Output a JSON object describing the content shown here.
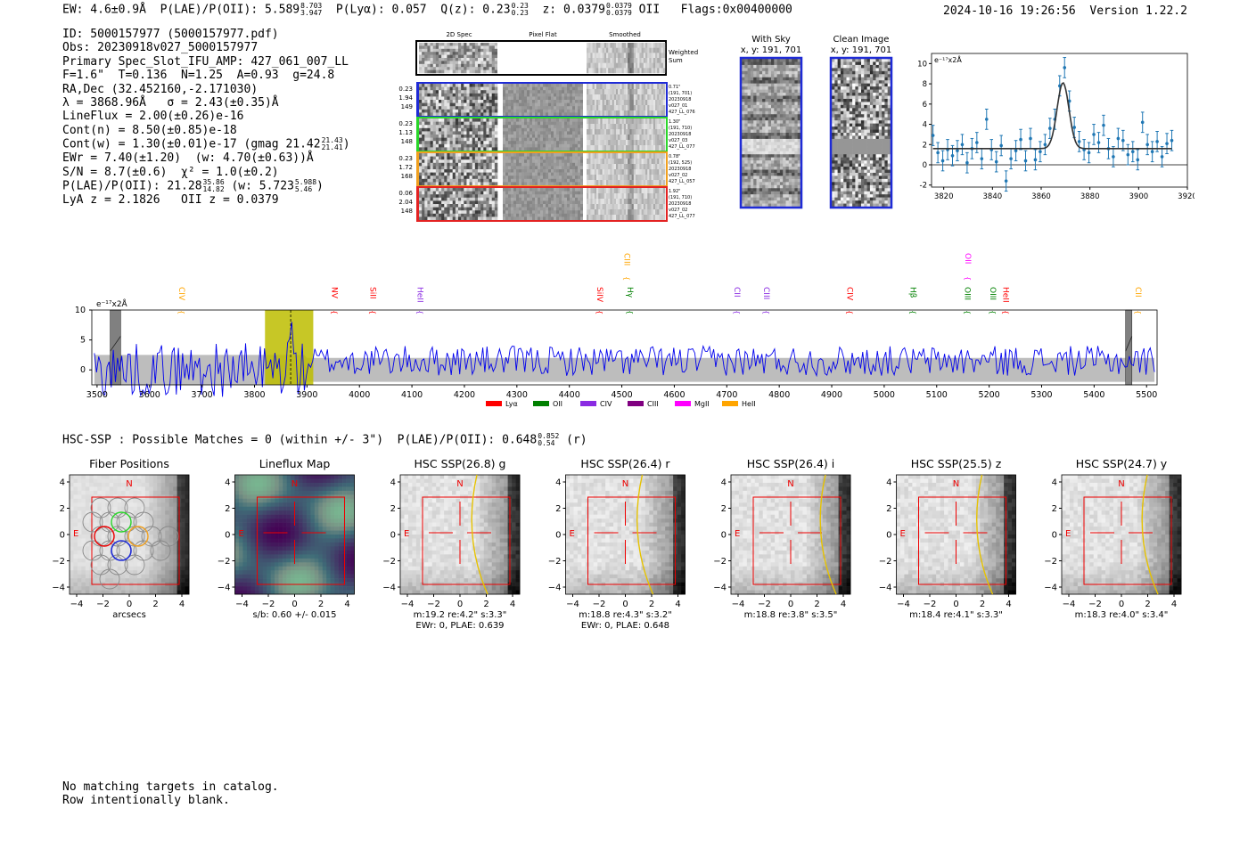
{
  "header": {
    "ew_label": "EW: 4.6±0.9Å",
    "plae_label": "P(LAE)/P(OII): 5.589",
    "plae_hi": "8.703",
    "plae_lo": "3.947",
    "plya_label": "P(Lyα): 0.057",
    "qz_label": "Q(z): 0.23",
    "qz_hi": "0.23",
    "qz_lo": "0.23",
    "z_label": "z: 0.0379",
    "z_hi": "0.0379",
    "z_lo": "0.0379",
    "z_line": "OII",
    "flags": "Flags:0x00400000",
    "datetime": "2024-10-16 19:26:56",
    "version": "Version 1.22.2"
  },
  "info": {
    "id": "ID: 5000157977 (5000157977.pdf)",
    "obs": "Obs: 20230918v027_5000157977",
    "primary": "Primary Spec_Slot_IFU_AMP: 427_061_007_LL",
    "params": "F=1.6\"  T=0.136  N=1.25  A=0.93  g=24.8",
    "radec": "RA,Dec (32.452160,-2.171030)",
    "lambda": "λ = 3868.96Å   σ = 2.43(±0.35)Å",
    "lineflux": "LineFlux = 2.00(±0.26)e-16",
    "contn": "Cont(n) = 8.50(±0.85)e-18",
    "contw": "Cont(w) = 1.30(±0.01)e-17 (gmag 21.42",
    "contw_hi": "21.43",
    "contw_lo": "21.41",
    "contw_end": ")",
    "ewr": "EWr = 7.40(±1.20)  (w: 4.70(±0.63))Å",
    "sn": "S/N = 8.7(±0.6)  χ² = 1.0(±0.2)",
    "plae": "P(LAE)/P(OII): 21.28",
    "plae_hi": "35.86",
    "plae_lo": "14.82",
    "plae_w": "(w: 5.723",
    "plae_w_hi": "5.988",
    "plae_w_lo": "5.46",
    "plae_w_end": ")",
    "lyaz": "LyA z = 2.1826   OII z = 0.0379"
  },
  "cutouts": {
    "col_2d": "2D Spec",
    "col_flat": "Pixel Flat",
    "col_smooth": "Smoothed",
    "weighted_label": "Weighted Sum",
    "rows": [
      {
        "left": [
          "0.23",
          "1.94",
          "149"
        ],
        "right": [
          "0.71\"",
          "(191, 701)",
          "20230918",
          "v027_01",
          "427_LL_076"
        ],
        "color": "#1f2bd6"
      },
      {
        "left": [
          "0.23",
          "1.13",
          "148"
        ],
        "right": [
          "1.30\"",
          "(191, 710)",
          "20230918",
          "v027_03",
          "427_LL_077"
        ],
        "color": "#2ad62a"
      },
      {
        "left": [
          "0.23",
          "1.72",
          "168"
        ],
        "right": [
          "0.78\"",
          "(192, 525)",
          "20230918",
          "v027_02",
          "427_LL_057"
        ],
        "color": "#f0a020"
      },
      {
        "left": [
          "0.06",
          "2.04",
          "148"
        ],
        "right": [
          "1.92\"",
          "(191, 710)",
          "20230918",
          "v027_02",
          "427_LL_077"
        ],
        "color": "#e32222"
      }
    ]
  },
  "sky_panel": {
    "title": "With Sky",
    "coords": "x, y: 191, 701"
  },
  "clean_panel": {
    "title": "Clean Image",
    "coords": "x, y: 191, 701"
  },
  "fit_panel": {
    "unit_label": "e⁻¹⁷x2Å"
  },
  "spectrum": {
    "unit_label": "e⁻¹⁷x2Å",
    "legend": [
      {
        "name": "Lyα",
        "color": "#ff0000"
      },
      {
        "name": "OII",
        "color": "#008000"
      },
      {
        "name": "CIV",
        "color": "#8a2be2"
      },
      {
        "name": "CIII",
        "color": "#800080"
      },
      {
        "name": "MgII",
        "color": "#ff00ff"
      },
      {
        "name": "HeII",
        "color": "#ffa500"
      }
    ]
  },
  "hsc": {
    "summary": "HSC-SSP : Possible Matches = 0 (within +/- 3\")  P(LAE)/P(OII): 0.648",
    "summary_hi": "0.852",
    "summary_lo": "0.54",
    "summary_end": "(r)"
  },
  "footer": {
    "line1": "No matching targets in catalog.",
    "line2": "Row intentionally blank."
  },
  "chart_data": [
    {
      "type": "scatter",
      "title": "Line fit",
      "ylabel": "e⁻¹⁷x2Å",
      "xlim": [
        3815,
        3920
      ],
      "ylim": [
        -2.2,
        11
      ],
      "xticks": [
        3820,
        3840,
        3860,
        3880,
        3900,
        3920
      ],
      "yticks": [
        -2,
        0,
        2,
        4,
        6,
        8,
        10
      ],
      "x": [
        3815.6,
        3817.6,
        3819.6,
        3821.6,
        3823.6,
        3825.6,
        3827.6,
        3829.6,
        3831.6,
        3833.6,
        3835.6,
        3837.6,
        3839.6,
        3841.6,
        3843.6,
        3845.6,
        3847.6,
        3849.6,
        3851.6,
        3853.6,
        3855.6,
        3857.6,
        3859.6,
        3861.6,
        3863.6,
        3865.6,
        3867.6,
        3869.6,
        3871.6,
        3873.6,
        3875.6,
        3877.6,
        3879.6,
        3881.6,
        3883.6,
        3885.6,
        3887.6,
        3889.6,
        3891.6,
        3893.6,
        3895.6,
        3897.6,
        3899.6,
        3901.6,
        3903.6,
        3905.6,
        3907.6,
        3909.6,
        3911.6,
        3913.6
      ],
      "y": [
        2.9,
        1.2,
        0.4,
        1.5,
        0.9,
        1.4,
        2.0,
        0.2,
        1.6,
        2.2,
        0.6,
        4.5,
        1.5,
        0.3,
        1.9,
        -1.6,
        0.6,
        1.4,
        2.5,
        0.4,
        2.6,
        0.5,
        1.3,
        2.0,
        3.6,
        4.5,
        7.8,
        9.6,
        6.3,
        3.7,
        2.3,
        1.5,
        1.2,
        3.0,
        2.2,
        3.9,
        1.6,
        0.8,
        2.6,
        2.4,
        1.0,
        1.3,
        0.5,
        4.2,
        2.0,
        1.3,
        2.3,
        0.8,
        2.1,
        2.4
      ],
      "err": [
        1.0,
        1.0,
        1.0,
        1.0,
        1.0,
        1.0,
        1.0,
        1.0,
        1.0,
        1.0,
        1.0,
        1.0,
        1.0,
        1.0,
        1.0,
        1.0,
        1.0,
        1.0,
        1.0,
        1.0,
        1.0,
        1.0,
        1.0,
        1.0,
        1.0,
        1.0,
        1.0,
        1.0,
        1.0,
        1.0,
        1.0,
        1.0,
        1.0,
        1.0,
        1.0,
        1.0,
        1.0,
        1.0,
        1.0,
        1.0,
        1.0,
        1.0,
        1.0,
        1.0,
        1.0,
        1.0,
        1.0,
        1.0,
        1.0,
        1.0
      ],
      "fit": {
        "continuum": 1.6,
        "amplitude": 6.5,
        "center": 3868.96,
        "sigma": 2.43
      }
    },
    {
      "type": "line",
      "title": "Full spectrum",
      "ylabel": "e⁻¹⁷x2Å",
      "xlim": [
        3490,
        5520
      ],
      "ylim": [
        -2.5,
        10
      ],
      "xticks": [
        3500,
        3600,
        3700,
        3800,
        3900,
        4000,
        4100,
        4200,
        4300,
        4400,
        4500,
        4600,
        4700,
        4800,
        4900,
        5000,
        5100,
        5200,
        5300,
        5400,
        5500
      ],
      "yticks": [
        0,
        5,
        10
      ],
      "highlight": [
        3820,
        3912
      ],
      "emission_wave": 3868.96,
      "masked": [
        [
          3525,
          3545
        ],
        [
          5460,
          5472
        ]
      ],
      "lines": [
        {
          "name": "CIV",
          "wave": 3651,
          "color": "#ffa500",
          "level": "mid"
        },
        {
          "name": "NV",
          "wave": 3943,
          "color": "#ff0000",
          "level": "mid"
        },
        {
          "name": "SiII",
          "wave": 4016,
          "color": "#ff0000",
          "level": "mid"
        },
        {
          "name": "HeII",
          "wave": 4106,
          "color": "#8a2be2",
          "level": "mid"
        },
        {
          "name": "SiIV",
          "wave": 4448,
          "color": "#ff0000",
          "level": "mid"
        },
        {
          "name": "Hγ",
          "wave": 4506,
          "color": "#008000",
          "level": "mid"
        },
        {
          "name": "CIII",
          "wave": 4500,
          "color": "#ffa500",
          "level": "high"
        },
        {
          "name": "CII",
          "wave": 4710,
          "color": "#8a2be2",
          "level": "mid"
        },
        {
          "name": "CIII",
          "wave": 4766,
          "color": "#8a2be2",
          "level": "mid"
        },
        {
          "name": "CIV",
          "wave": 4925,
          "color": "#ff0000",
          "level": "mid"
        },
        {
          "name": "Hβ",
          "wave": 5045,
          "color": "#008000",
          "level": "mid"
        },
        {
          "name": "OIII",
          "wave": 5149,
          "color": "#008000",
          "level": "mid"
        },
        {
          "name": "OII",
          "wave": 5150,
          "color": "#ff00ff",
          "level": "high"
        },
        {
          "name": "OIII",
          "wave": 5197,
          "color": "#008000",
          "level": "mid"
        },
        {
          "name": "HeII",
          "wave": 5222,
          "color": "#ff0000",
          "level": "mid"
        },
        {
          "name": "CII",
          "wave": 5474,
          "color": "#ffa500",
          "level": "mid"
        }
      ]
    }
  ],
  "imaging_panels": [
    {
      "title": "Fiber Positions",
      "sub1": "arcsecs",
      "sub2": "",
      "kind": "fiber"
    },
    {
      "title": "Lineflux Map",
      "sub1": "s/b: 0.60 +/- 0.015",
      "sub2": "",
      "kind": "lineflux"
    },
    {
      "title": "HSC SSP(26.8) g",
      "sub1": "m:19.2  re:4.2\"  s:3.3\"",
      "sub2": "EWr: 0, PLAE: 0.639",
      "kind": "hsc"
    },
    {
      "title": "HSC SSP(26.4) r",
      "sub1": "m:18.8  re:4.3\"  s:3.2\"",
      "sub2": "EWr: 0, PLAE: 0.648",
      "kind": "hsc"
    },
    {
      "title": "HSC SSP(26.4) i",
      "sub1": "m:18.8  re:3.8\"  s:3.5\"",
      "sub2": "",
      "kind": "hsc"
    },
    {
      "title": "HSC SSP(25.5) z",
      "sub1": "m:18.4  re:4.1\"  s:3.3\"",
      "sub2": "",
      "kind": "hsc"
    },
    {
      "title": "HSC SSP(24.7) y",
      "sub1": "m:18.3  re:4.0\"  s:3.4\"",
      "sub2": "",
      "kind": "hsc"
    }
  ],
  "imaging_axes": {
    "ticks": [
      "−4",
      "−2",
      "0",
      "2",
      "4"
    ],
    "north": "N",
    "east": "E"
  }
}
